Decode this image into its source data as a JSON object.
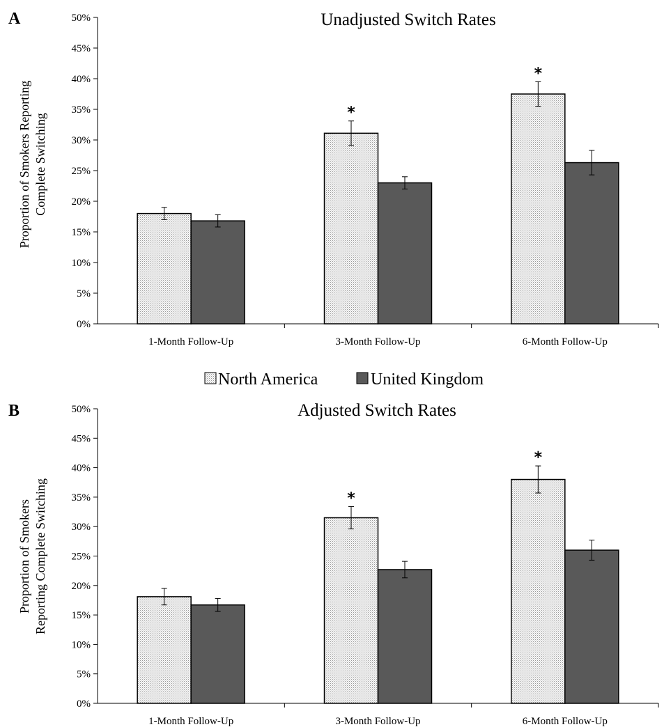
{
  "legend": {
    "series": [
      {
        "name": "North America",
        "style": "dotted",
        "color": "#f0f0f0"
      },
      {
        "name": "United Kingdom",
        "style": "solid",
        "color": "#595959"
      }
    ]
  },
  "chart_data": [
    {
      "type": "bar",
      "panel": "A",
      "title": "Unadjusted Switch Rates",
      "ylabel_lines": [
        "Proportion of Smokers Reporting",
        "Complete Switching"
      ],
      "xlabel": "",
      "categories": [
        "1-Month Follow-Up",
        "3-Month Follow-Up",
        "6-Month Follow-Up"
      ],
      "yticks": [
        "0%",
        "5%",
        "10%",
        "15%",
        "20%",
        "25%",
        "30%",
        "35%",
        "40%",
        "45%",
        "50%"
      ],
      "ylim": [
        0,
        50
      ],
      "series": [
        {
          "name": "North America",
          "values": [
            18.0,
            31.1,
            37.5
          ],
          "errors": [
            1.0,
            2.0,
            2.0
          ],
          "significant": [
            false,
            true,
            true
          ]
        },
        {
          "name": "United Kingdom",
          "values": [
            16.8,
            23.0,
            26.3
          ],
          "errors": [
            1.0,
            1.0,
            2.0
          ],
          "significant": [
            false,
            false,
            false
          ]
        }
      ],
      "significance_marker": "*",
      "grid": false,
      "legend_position": "bottom-center"
    },
    {
      "type": "bar",
      "panel": "B",
      "title": "Adjusted Switch Rates",
      "ylabel_lines": [
        "Proportion of Smokers",
        "Reporting Complete Switching"
      ],
      "xlabel": "",
      "categories": [
        "1-Month Follow-Up",
        "3-Month Follow-Up",
        "6-Month Follow-Up"
      ],
      "yticks": [
        "0%",
        "5%",
        "10%",
        "15%",
        "20%",
        "25%",
        "30%",
        "35%",
        "40%",
        "45%",
        "50%"
      ],
      "ylim": [
        0,
        50
      ],
      "series": [
        {
          "name": "North America",
          "values": [
            18.1,
            31.5,
            38.0
          ],
          "errors": [
            1.4,
            1.9,
            2.3
          ],
          "significant": [
            false,
            true,
            true
          ]
        },
        {
          "name": "United Kingdom",
          "values": [
            16.7,
            22.7,
            26.0
          ],
          "errors": [
            1.1,
            1.4,
            1.7
          ],
          "significant": [
            false,
            false,
            false
          ]
        }
      ],
      "significance_marker": "*",
      "grid": false,
      "legend_position": "top-center"
    }
  ]
}
